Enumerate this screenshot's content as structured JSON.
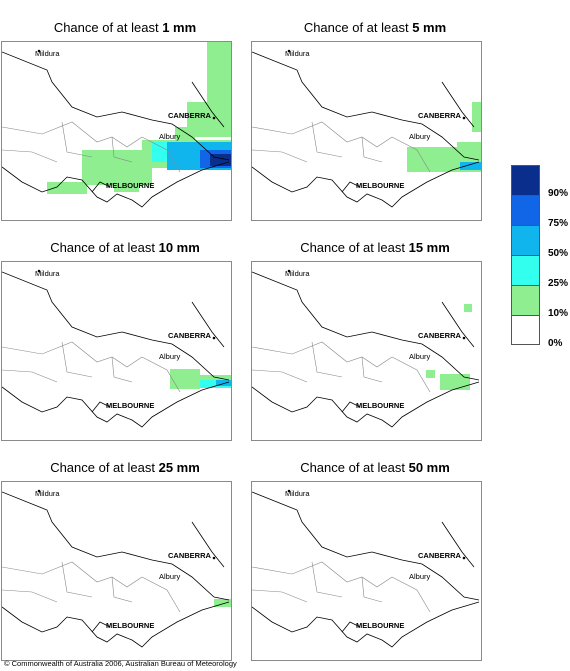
{
  "panels": [
    {
      "title_prefix": "Chance of at least ",
      "amount": "1 mm"
    },
    {
      "title_prefix": "Chance of at least ",
      "amount": "5 mm"
    },
    {
      "title_prefix": "Chance of at least ",
      "amount": "10 mm"
    },
    {
      "title_prefix": "Chance of at least ",
      "amount": "15 mm"
    },
    {
      "title_prefix": "Chance of at least ",
      "amount": "25 mm"
    },
    {
      "title_prefix": "Chance of at least ",
      "amount": "50 mm"
    }
  ],
  "map_labels": {
    "mildura": "Mildura",
    "canberra": "CANBERRA",
    "albury": "Albury",
    "melbourne": "MELBOURNE"
  },
  "legend": {
    "colors": [
      "#0a2e8c",
      "#1166e8",
      "#11b5ee",
      "#33ffee",
      "#8fee8f",
      "#ffffff"
    ],
    "labels": [
      "90%",
      "75%",
      "50%",
      "25%",
      "10%",
      "0%"
    ]
  },
  "copyright": "© Commonwealth of Australia 2006, Australian Bureau of Meteorology"
}
